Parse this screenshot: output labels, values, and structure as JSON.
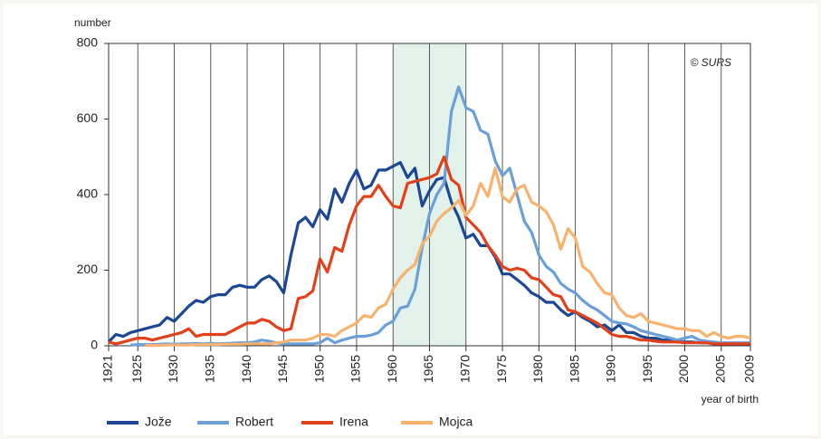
{
  "chart_data": {
    "type": "line",
    "y_label": "number",
    "x_label": "year of birth",
    "annotation": "© SURS",
    "x": [
      1921,
      1922,
      1923,
      1924,
      1925,
      1926,
      1927,
      1928,
      1929,
      1930,
      1931,
      1932,
      1933,
      1934,
      1935,
      1936,
      1937,
      1938,
      1939,
      1940,
      1941,
      1942,
      1943,
      1944,
      1945,
      1946,
      1947,
      1948,
      1949,
      1950,
      1951,
      1952,
      1953,
      1954,
      1955,
      1956,
      1957,
      1958,
      1959,
      1960,
      1961,
      1962,
      1963,
      1964,
      1965,
      1966,
      1967,
      1968,
      1969,
      1970,
      1971,
      1972,
      1973,
      1974,
      1975,
      1976,
      1977,
      1978,
      1979,
      1980,
      1981,
      1982,
      1983,
      1984,
      1985,
      1986,
      1987,
      1988,
      1989,
      1990,
      1991,
      1992,
      1993,
      1994,
      1995,
      1996,
      1997,
      1998,
      1999,
      2000,
      2001,
      2002,
      2003,
      2004,
      2005,
      2006,
      2007,
      2008,
      2009
    ],
    "series": [
      {
        "name": "Jože",
        "color": "#1b4793",
        "values": [
          10,
          30,
          25,
          35,
          40,
          45,
          50,
          55,
          75,
          65,
          85,
          105,
          120,
          115,
          130,
          135,
          135,
          155,
          160,
          155,
          155,
          175,
          185,
          170,
          140,
          240,
          325,
          340,
          315,
          360,
          335,
          415,
          380,
          430,
          465,
          415,
          425,
          465,
          465,
          475,
          485,
          445,
          470,
          370,
          410,
          440,
          445,
          380,
          340,
          285,
          295,
          265,
          265,
          235,
          190,
          190,
          175,
          160,
          140,
          130,
          115,
          115,
          95,
          80,
          90,
          75,
          65,
          50,
          55,
          40,
          55,
          35,
          35,
          25,
          20,
          20,
          15,
          15,
          10,
          10,
          10,
          8,
          8,
          5,
          5,
          5,
          5,
          5,
          5
        ]
      },
      {
        "name": "Robert",
        "color": "#6a9fd8",
        "values": [
          null,
          null,
          null,
          2,
          3,
          3,
          3,
          4,
          5,
          4,
          5,
          5,
          6,
          5,
          6,
          5,
          6,
          7,
          8,
          8,
          10,
          15,
          12,
          8,
          5,
          5,
          5,
          5,
          5,
          8,
          20,
          8,
          15,
          20,
          25,
          25,
          28,
          35,
          55,
          65,
          100,
          105,
          150,
          260,
          350,
          400,
          430,
          620,
          685,
          630,
          620,
          570,
          560,
          490,
          450,
          470,
          400,
          330,
          300,
          240,
          210,
          195,
          165,
          150,
          140,
          120,
          105,
          95,
          80,
          65,
          60,
          58,
          50,
          40,
          35,
          30,
          25,
          20,
          15,
          20,
          25,
          15,
          12,
          10,
          8,
          8,
          8,
          8,
          8
        ]
      },
      {
        "name": "Irena",
        "color": "#e2401b",
        "values": [
          10,
          5,
          10,
          15,
          20,
          20,
          15,
          20,
          25,
          30,
          35,
          45,
          25,
          30,
          30,
          30,
          30,
          40,
          50,
          60,
          60,
          70,
          65,
          50,
          40,
          45,
          125,
          130,
          145,
          230,
          195,
          260,
          250,
          320,
          370,
          395,
          395,
          425,
          395,
          370,
          365,
          430,
          435,
          440,
          445,
          455,
          500,
          440,
          425,
          340,
          320,
          300,
          265,
          240,
          210,
          200,
          205,
          200,
          180,
          175,
          155,
          135,
          130,
          95,
          90,
          80,
          70,
          60,
          45,
          30,
          25,
          25,
          20,
          15,
          15,
          12,
          10,
          10,
          10,
          8,
          8,
          8,
          8,
          5,
          5,
          5,
          5,
          5,
          5
        ]
      },
      {
        "name": "Mojca",
        "color": "#f6b26e",
        "values": [
          null,
          null,
          null,
          null,
          null,
          1,
          1,
          1,
          2,
          2,
          2,
          2,
          3,
          3,
          3,
          3,
          4,
          4,
          4,
          5,
          5,
          5,
          5,
          8,
          10,
          15,
          15,
          15,
          20,
          30,
          30,
          25,
          40,
          50,
          60,
          80,
          75,
          100,
          110,
          150,
          180,
          200,
          215,
          270,
          290,
          330,
          350,
          365,
          385,
          345,
          370,
          430,
          395,
          470,
          395,
          380,
          415,
          425,
          380,
          370,
          355,
          320,
          255,
          310,
          285,
          210,
          195,
          165,
          140,
          135,
          100,
          80,
          75,
          85,
          65,
          60,
          55,
          50,
          45,
          45,
          40,
          40,
          25,
          35,
          25,
          20,
          25,
          25,
          20
        ]
      }
    ],
    "xlim": [
      1921,
      2009
    ],
    "xticks": [
      1921,
      1925,
      1930,
      1935,
      1940,
      1945,
      1950,
      1955,
      1960,
      1965,
      1970,
      1975,
      1980,
      1985,
      1990,
      1995,
      2000,
      2005,
      2009
    ],
    "ylim": [
      0,
      800
    ],
    "yticks": [
      0,
      200,
      400,
      600,
      800
    ],
    "highlight": [
      1960,
      1970
    ],
    "highlight_color": "#e2f2ea",
    "grid": "x"
  }
}
